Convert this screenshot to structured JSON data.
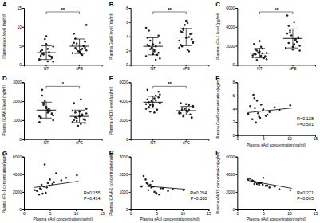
{
  "chart_data": [
    {
      "type": "dot",
      "title": "A",
      "y_label": "Plasma sAxl level (ng/ml)",
      "categories": [
        "NT",
        "sPE"
      ],
      "color": "#222222",
      "marker": "circle",
      "values": [
        [
          1.2,
          2.5,
          3.1,
          0.8,
          4.2,
          2.9,
          1.8,
          5.5,
          3.6,
          2.2,
          6.8,
          1.5,
          3.3,
          2.7,
          4.8,
          0.9,
          3.9,
          2.1,
          7.5,
          2.4
        ],
        [
          3.1,
          4.2,
          5.6,
          3.8,
          2.9,
          6.9,
          4.5,
          3.3,
          8.2,
          4.9,
          3.6,
          5.2,
          2.6,
          4.1,
          10.5,
          3.9,
          4.4,
          6.1,
          3.5,
          5.8
        ]
      ],
      "mean": [
        3.2,
        4.9
      ],
      "sd": [
        1.8,
        1.9
      ],
      "annotations": [
        "**"
      ],
      "ylim": [
        0,
        15
      ],
      "yticks": [
        0,
        5,
        10,
        15
      ]
    },
    {
      "type": "dot",
      "title": "B",
      "y_label": "Plasma Gas6 level (ng/ml)",
      "categories": [
        "NT",
        "sPE"
      ],
      "color": "#222222",
      "marker": "circle",
      "values": [
        [
          1.2,
          2.6,
          3.4,
          0.9,
          2.1,
          4.8,
          1.7,
          2.9,
          3.8,
          1.4,
          2.4,
          5.2,
          0.7,
          2.2,
          3.1,
          1.9,
          2.7,
          4.1,
          1.5,
          2.8
        ],
        [
          2.4,
          3.9,
          5.1,
          3.2,
          2.1,
          4.6,
          3.6,
          6.2,
          2.8,
          4.3,
          5.6,
          3.4,
          1.9,
          4.9,
          3.1,
          5.9,
          2.6,
          4.4,
          3.8,
          4.7
        ]
      ],
      "mean": [
        2.6,
        3.9
      ],
      "sd": [
        1.2,
        1.2
      ],
      "annotations": [
        "**"
      ],
      "ylim": [
        0,
        8
      ],
      "yticks": [
        0,
        2,
        4,
        6,
        8
      ]
    },
    {
      "type": "dot",
      "title": "C",
      "y_label": "Plasma sFlt-1 level (pg/ml)",
      "categories": [
        "NT",
        "sPE"
      ],
      "color": "#222222",
      "marker": "circle",
      "values": [
        [
          800,
          1200,
          1500,
          600,
          1900,
          1100,
          900,
          1400,
          2200,
          700,
          1300,
          1000,
          1700,
          500,
          1250,
          950,
          1600,
          850,
          2500,
          1150
        ],
        [
          1800,
          2600,
          3400,
          1500,
          2200,
          4100,
          2900,
          1900,
          5200,
          2400,
          3100,
          1700,
          2700,
          3600,
          2000,
          4500,
          2300,
          2800,
          1600,
          3300
        ]
      ],
      "mean": [
        1230,
        2780
      ],
      "sd": [
        500,
        1000
      ],
      "annotations": [
        "**"
      ],
      "ylim": [
        0,
        6000
      ],
      "yticks": [
        0,
        2000,
        4000,
        6000
      ]
    },
    {
      "type": "dot",
      "title": "D",
      "y_label": "Plasma ICAM-1 level (ng/ml)",
      "categories": [
        "NT",
        "sPE"
      ],
      "color": "#222222",
      "marker": "circle",
      "values": [
        [
          1200,
          1600,
          1900,
          1000,
          1400,
          2300,
          1300,
          1700,
          1100,
          1500,
          2000,
          900,
          1450,
          1800,
          1250,
          1550,
          2600,
          1350,
          1650,
          1150
        ],
        [
          900,
          1300,
          1100,
          1600,
          800,
          1400,
          1000,
          1200,
          1900,
          1050,
          700,
          1500,
          1250,
          950,
          1350,
          2100,
          1150,
          850,
          1450,
          1000
        ]
      ],
      "mean": [
        1530,
        1200
      ],
      "sd": [
        420,
        330
      ],
      "annotations": [
        "*"
      ],
      "ylim": [
        0,
        3000
      ],
      "yticks": [
        0,
        1000,
        2000,
        3000
      ]
    },
    {
      "type": "dot",
      "title": "E",
      "y_label": "Plasma eNOS level (pg/ml)",
      "categories": [
        "NT",
        "sPE"
      ],
      "color": "#222222",
      "marker": "circle",
      "values": [
        [
          3200,
          4100,
          3600,
          4700,
          2800,
          3900,
          4400,
          3500,
          5200,
          3100,
          4000,
          3700,
          4600,
          2900,
          3800,
          4300,
          3400,
          5000,
          3600,
          4200
        ],
        [
          2700,
          3100,
          2400,
          3500,
          2900,
          3300,
          2200,
          3000,
          3800,
          2600,
          3200,
          2800,
          3600,
          2500,
          3400,
          2900,
          3100,
          2300,
          3700,
          2750
        ]
      ],
      "mean": [
        3900,
        3000
      ],
      "sd": [
        620,
        450
      ],
      "annotations": [
        "**"
      ],
      "ylim": [
        0,
        6000
      ],
      "yticks": [
        0,
        2000,
        4000,
        6000
      ]
    },
    {
      "type": "scatter",
      "title": "F",
      "x_label": "Plasma sAxl concentration(ng/ml)",
      "y_label": "Plasma Gas6 concentration(ng/ml)",
      "color": "#222222",
      "marker": "circle",
      "x": [
        2.1,
        3.4,
        4.2,
        5.0,
        3.8,
        6.2,
        2.9,
        4.6,
        8.1,
        3.1,
        5.5,
        4.0,
        2.5,
        7.2,
        3.6,
        4.9,
        10.2,
        3.3,
        5.8,
        4.4
      ],
      "values": [
        3.2,
        4.1,
        2.8,
        3.9,
        5.2,
        3.5,
        2.4,
        4.6,
        3.8,
        6.1,
        2.9,
        3.3,
        4.4,
        4.2,
        1.9,
        3.7,
        4.5,
        5.6,
        3.1,
        2.6
      ],
      "fit": {
        "x": [
          2,
          10.5
        ],
        "values": [
          3.4,
          4.1
        ]
      },
      "annotations": [
        "R=0.128",
        "P=0.501"
      ],
      "xlim": [
        0,
        15
      ],
      "xticks": [
        0,
        5,
        10,
        15
      ],
      "ylim": [
        0,
        8
      ],
      "yticks": [
        0,
        2,
        4,
        6,
        8
      ]
    },
    {
      "type": "scatter",
      "title": "G",
      "x_label": "Plasma sAxl concentration(ng/ml)",
      "y_label": "Plasma sFlt-1 concentration(pg/ml)",
      "color": "#222222",
      "marker": "circle",
      "x": [
        2.1,
        3.4,
        4.2,
        5.0,
        3.8,
        6.2,
        2.9,
        4.6,
        8.1,
        3.1,
        5.5,
        4.0,
        2.5,
        7.2,
        3.6,
        4.9,
        10.2,
        3.3,
        5.8,
        4.4
      ],
      "values": [
        2200,
        2800,
        1900,
        3400,
        2600,
        4100,
        1700,
        3000,
        3600,
        2400,
        2900,
        5100,
        2100,
        3300,
        1800,
        2700,
        3900,
        2300,
        3100,
        2500
      ],
      "fit": {
        "x": [
          2,
          10.5
        ],
        "values": [
          2500,
          3200
        ]
      },
      "annotations": [
        "R=0.155",
        "P=0.414"
      ],
      "xlim": [
        0,
        15
      ],
      "xticks": [
        0,
        5,
        10,
        15
      ],
      "ylim": [
        0,
        6000
      ],
      "yticks": [
        0,
        2000,
        4000,
        6000
      ]
    },
    {
      "type": "scatter",
      "title": "H",
      "x_label": "Plasma sAxl concentration(ng/ml)",
      "y_label": "Plasma ICAM-1 concentration(ng/ml)",
      "color": "#222222",
      "marker": "circle",
      "x": [
        2.1,
        3.4,
        4.2,
        5.0,
        3.8,
        6.2,
        2.9,
        4.6,
        8.1,
        3.1,
        5.5,
        4.0,
        2.5,
        7.2,
        3.6,
        4.9,
        10.2,
        3.3,
        5.8,
        4.4
      ],
      "values": [
        1300,
        1100,
        1600,
        900,
        1400,
        1200,
        1700,
        1000,
        1150,
        1500,
        850,
        1250,
        1900,
        1050,
        1350,
        950,
        1100,
        1450,
        1200,
        1300
      ],
      "fit": {
        "x": [
          2,
          10.5
        ],
        "values": [
          1350,
          1150
        ]
      },
      "annotations": [
        "R=0.054",
        "P=0.330"
      ],
      "xlim": [
        0,
        15
      ],
      "xticks": [
        0,
        5,
        10,
        15
      ],
      "ylim": [
        0,
        3000
      ],
      "yticks": [
        0,
        1000,
        2000,
        3000
      ]
    },
    {
      "type": "scatter",
      "title": "I",
      "x_label": "Plasma sAxl concentration(ng/ml)",
      "y_label": "Plasma eNOS concentration(pg/ml)",
      "color": "#222222",
      "marker": "circle",
      "x": [
        2.1,
        3.4,
        4.2,
        5.0,
        3.8,
        6.2,
        2.9,
        4.6,
        8.1,
        3.1,
        5.5,
        4.0,
        2.5,
        7.2,
        3.6,
        4.9,
        10.2,
        3.3,
        5.8,
        4.4
      ],
      "values": [
        3400,
        3100,
        2800,
        3600,
        2900,
        2500,
        3300,
        3000,
        2300,
        3200,
        2700,
        3000,
        3500,
        2600,
        3100,
        2800,
        2200,
        2900,
        2700,
        3000
      ],
      "fit": {
        "x": [
          2,
          10.5
        ],
        "values": [
          3300,
          2400
        ]
      },
      "annotations": [
        "R=0.271",
        "P=0.005"
      ],
      "xlim": [
        0,
        15
      ],
      "xticks": [
        0,
        5,
        10,
        15
      ],
      "ylim": [
        0,
        6000
      ],
      "yticks": [
        0,
        2000,
        4000,
        6000
      ]
    }
  ]
}
